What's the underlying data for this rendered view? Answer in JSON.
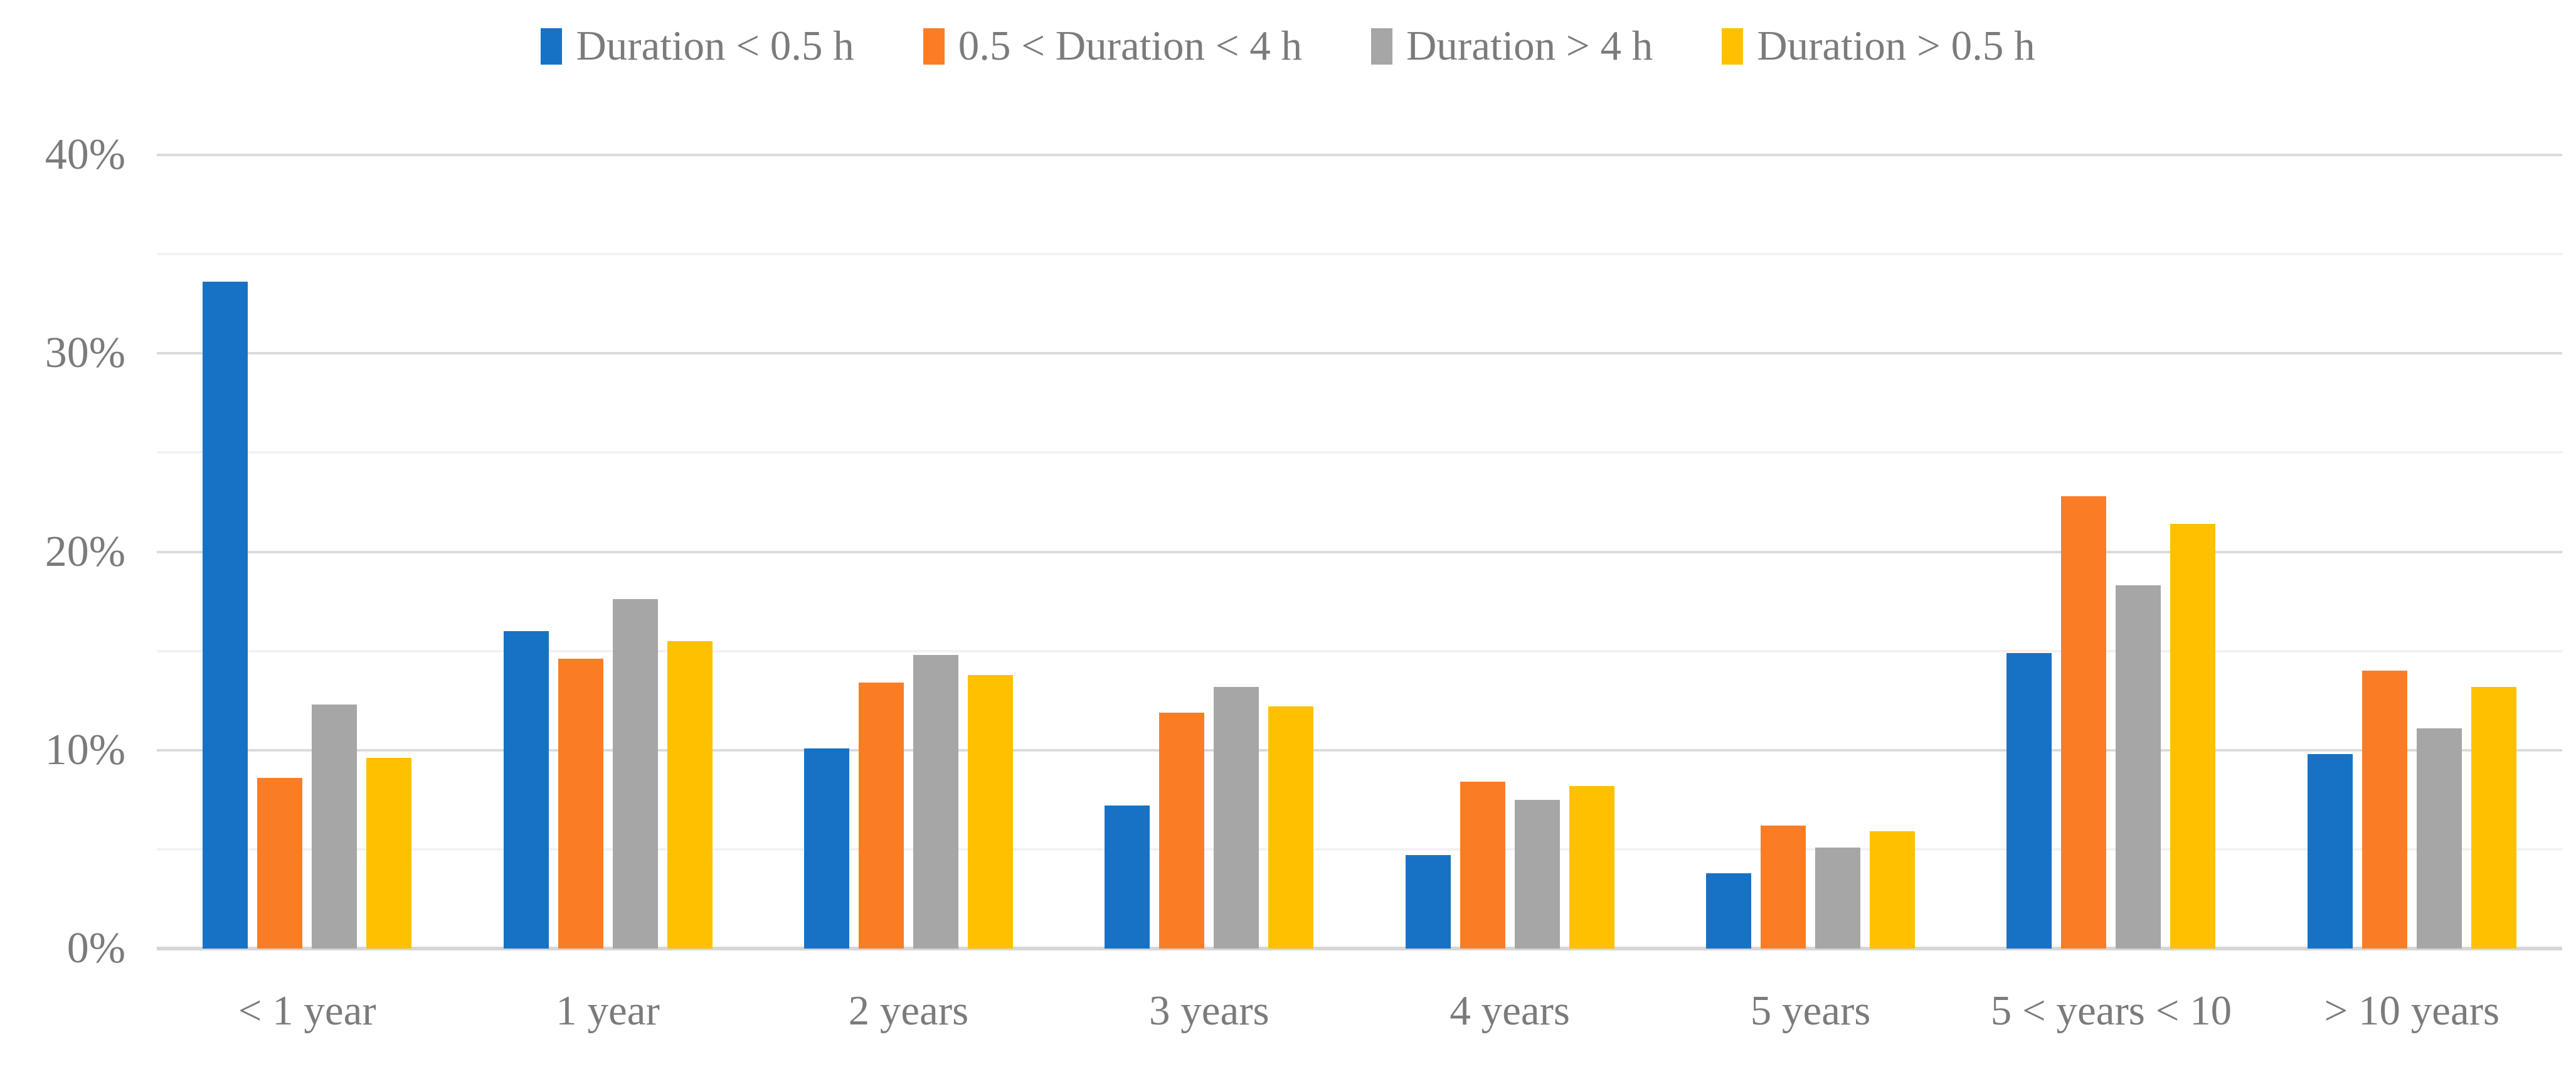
{
  "chart_data": {
    "type": "bar",
    "title": "",
    "categories": [
      "< 1 year",
      "1 year",
      "2 years",
      "3 years",
      "4 years",
      "5 years",
      "5 < years < 10",
      "> 10 years"
    ],
    "series": [
      {
        "name": "Duration < 0.5 h",
        "color": "#1772C6",
        "values": [
          33.6,
          16.0,
          10.1,
          7.2,
          4.7,
          3.8,
          14.9,
          9.8
        ]
      },
      {
        "name": "0.5 < Duration < 4 h",
        "color": "#FA7D26",
        "values": [
          8.6,
          14.6,
          13.4,
          11.9,
          8.4,
          6.2,
          22.8,
          14.0
        ]
      },
      {
        "name": "Duration > 4 h",
        "color": "#A6A6A6",
        "values": [
          12.3,
          17.6,
          14.8,
          13.2,
          7.5,
          5.1,
          18.3,
          11.1
        ]
      },
      {
        "name": "Duration > 0.5 h",
        "color": "#FFC000",
        "values": [
          9.6,
          15.5,
          13.8,
          12.2,
          8.2,
          5.9,
          21.4,
          13.2
        ]
      }
    ],
    "xlabel": "",
    "ylabel": "",
    "ylim": [
      0,
      40
    ],
    "y_major_step": 10,
    "y_minor_step": 5,
    "y_tick_labels": [
      "0%",
      "10%",
      "20%",
      "30%",
      "40%"
    ],
    "grid": true,
    "legend_position": "top"
  },
  "colors": {
    "axis_text": "#7b7b7b",
    "major_grid": "#dbdbdb",
    "minor_grid": "#f2f2f2",
    "axis_line": "#d6d6d6",
    "background": "#ffffff"
  }
}
